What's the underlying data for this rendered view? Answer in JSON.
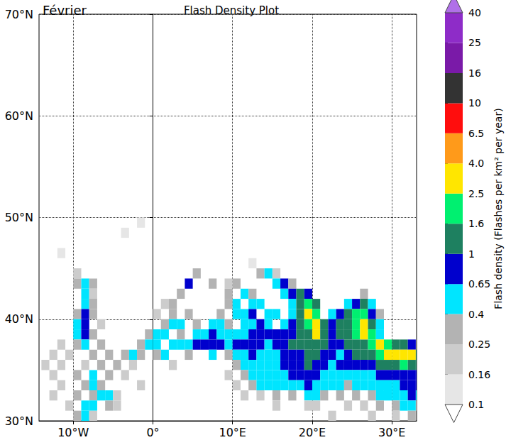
{
  "chart_data": {
    "type": "heatmap",
    "title": "Flash Density Plot",
    "annotation": "Février",
    "xlim": [
      -14.3,
      33.1
    ],
    "ylim": [
      30,
      70
    ],
    "xticks": [
      {
        "value": -10,
        "label": "10°W"
      },
      {
        "value": 0,
        "label": "0°"
      },
      {
        "value": 10,
        "label": "10°E"
      },
      {
        "value": 20,
        "label": "20°E"
      },
      {
        "value": 30,
        "label": "30°E"
      }
    ],
    "yticks": [
      {
        "value": 30,
        "label": "30°N"
      },
      {
        "value": 40,
        "label": "40°N"
      },
      {
        "value": 50,
        "label": "50°N"
      },
      {
        "value": 60,
        "label": "60°N"
      },
      {
        "value": 70,
        "label": "70°N"
      }
    ],
    "grid": true,
    "cell_size": 1,
    "cells": [
      [
        -10,
        44,
        0.2
      ],
      [
        13,
        44,
        0.3
      ],
      [
        14,
        44,
        0.5
      ],
      [
        15,
        44,
        0.2
      ],
      [
        -10,
        43,
        0.3
      ],
      [
        -9,
        43,
        0.6
      ],
      [
        -8,
        43,
        0.3
      ],
      [
        4,
        43,
        0.8
      ],
      [
        7,
        43,
        0.3
      ],
      [
        9,
        43,
        0.2
      ],
      [
        10,
        43,
        0.3
      ],
      [
        15,
        43,
        0.5
      ],
      [
        16,
        43,
        0.7
      ],
      [
        17,
        43,
        0.3
      ],
      [
        -9,
        42,
        0.5
      ],
      [
        -8,
        42,
        0.2
      ],
      [
        3,
        42,
        0.3
      ],
      [
        9,
        42,
        0.3
      ],
      [
        11,
        42,
        0.4
      ],
      [
        12,
        42,
        0.3
      ],
      [
        16,
        42,
        0.5
      ],
      [
        17,
        42,
        0.8
      ],
      [
        18,
        42,
        1.2
      ],
      [
        19,
        42,
        0.7
      ],
      [
        26,
        42,
        0.3
      ],
      [
        -9,
        41,
        0.5
      ],
      [
        -8,
        41,
        0.3
      ],
      [
        1,
        41,
        0.2
      ],
      [
        2,
        41,
        0.3
      ],
      [
        9,
        41,
        0.3
      ],
      [
        10,
        41,
        0.5
      ],
      [
        12,
        41,
        0.5
      ],
      [
        13,
        41,
        0.6
      ],
      [
        17,
        41,
        0.5
      ],
      [
        18,
        41,
        1.0
      ],
      [
        19,
        41,
        2.0
      ],
      [
        20,
        41,
        1.2
      ],
      [
        24,
        41,
        0.5
      ],
      [
        25,
        41,
        0.9
      ],
      [
        26,
        41,
        1.2
      ],
      [
        27,
        41,
        0.5
      ],
      [
        -10,
        40,
        0.3
      ],
      [
        -9,
        40,
        0.7
      ],
      [
        -8,
        40,
        0.3
      ],
      [
        0,
        40,
        0.2
      ],
      [
        2,
        40,
        0.3
      ],
      [
        4,
        40,
        0.3
      ],
      [
        8,
        40,
        0.3
      ],
      [
        10,
        40,
        0.4
      ],
      [
        11,
        40,
        0.5
      ],
      [
        12,
        40,
        0.7
      ],
      [
        14,
        40,
        0.5
      ],
      [
        15,
        40,
        0.4
      ],
      [
        17,
        40,
        0.6
      ],
      [
        18,
        40,
        1.2
      ],
      [
        19,
        40,
        2.8
      ],
      [
        20,
        40,
        1.8
      ],
      [
        22,
        40,
        0.5
      ],
      [
        23,
        40,
        0.8
      ],
      [
        24,
        40,
        1.0
      ],
      [
        25,
        40,
        1.8
      ],
      [
        26,
        40,
        2.2
      ],
      [
        27,
        40,
        0.7
      ],
      [
        28,
        40,
        0.3
      ],
      [
        -10,
        39,
        0.5
      ],
      [
        -9,
        39,
        0.9
      ],
      [
        -7,
        39,
        0.2
      ],
      [
        1,
        39,
        0.3
      ],
      [
        2,
        39,
        0.4
      ],
      [
        3,
        39,
        0.5
      ],
      [
        5,
        39,
        0.3
      ],
      [
        7,
        39,
        0.4
      ],
      [
        8,
        39,
        0.5
      ],
      [
        9,
        39,
        0.3
      ],
      [
        11,
        39,
        0.5
      ],
      [
        12,
        39,
        0.6
      ],
      [
        13,
        39,
        0.7
      ],
      [
        14,
        39,
        0.6
      ],
      [
        16,
        39,
        0.5
      ],
      [
        17,
        39,
        0.8
      ],
      [
        18,
        39,
        1.2
      ],
      [
        19,
        39,
        2.0
      ],
      [
        20,
        39,
        3.0
      ],
      [
        21,
        39,
        1.0
      ],
      [
        22,
        39,
        0.7
      ],
      [
        23,
        39,
        1.0
      ],
      [
        24,
        39,
        1.5
      ],
      [
        25,
        39,
        2.0
      ],
      [
        26,
        39,
        3.0
      ],
      [
        27,
        39,
        1.5
      ],
      [
        28,
        39,
        0.4
      ],
      [
        -10,
        38,
        0.4
      ],
      [
        -9,
        38,
        0.7
      ],
      [
        -8,
        38,
        0.3
      ],
      [
        -1,
        38,
        0.3
      ],
      [
        0,
        38,
        0.5
      ],
      [
        1,
        38,
        0.4
      ],
      [
        3,
        38,
        0.3
      ],
      [
        5,
        38,
        0.5
      ],
      [
        6,
        38,
        0.5
      ],
      [
        7,
        38,
        0.7
      ],
      [
        8,
        38,
        0.6
      ],
      [
        9,
        38,
        0.4
      ],
      [
        10,
        38,
        0.5
      ],
      [
        11,
        38,
        0.6
      ],
      [
        12,
        38,
        0.7
      ],
      [
        13,
        38,
        0.8
      ],
      [
        14,
        38,
        0.7
      ],
      [
        15,
        38,
        0.8
      ],
      [
        16,
        38,
        0.9
      ],
      [
        17,
        38,
        0.9
      ],
      [
        18,
        38,
        1.0
      ],
      [
        19,
        38,
        1.5
      ],
      [
        20,
        38,
        2.5
      ],
      [
        21,
        38,
        1.2
      ],
      [
        22,
        38,
        0.9
      ],
      [
        23,
        38,
        1.2
      ],
      [
        24,
        38,
        1.0
      ],
      [
        25,
        38,
        1.8
      ],
      [
        26,
        38,
        2.8
      ],
      [
        27,
        38,
        2.0
      ],
      [
        28,
        38,
        0.6
      ],
      [
        -12,
        37,
        0.2
      ],
      [
        -10,
        37,
        0.3
      ],
      [
        -9,
        37,
        0.5
      ],
      [
        -7,
        37,
        0.3
      ],
      [
        -2,
        37,
        0.3
      ],
      [
        -1,
        37,
        0.5
      ],
      [
        0,
        37,
        0.4
      ],
      [
        2,
        37,
        0.4
      ],
      [
        3,
        37,
        0.5
      ],
      [
        4,
        37,
        0.6
      ],
      [
        5,
        37,
        0.7
      ],
      [
        6,
        37,
        0.8
      ],
      [
        7,
        37,
        0.9
      ],
      [
        8,
        37,
        0.7
      ],
      [
        9,
        37,
        0.6
      ],
      [
        10,
        37,
        0.7
      ],
      [
        11,
        37,
        0.8
      ],
      [
        12,
        37,
        0.9
      ],
      [
        13,
        37,
        0.7
      ],
      [
        14,
        37,
        0.6
      ],
      [
        15,
        37,
        0.7
      ],
      [
        16,
        37,
        0.9
      ],
      [
        17,
        37,
        1.0
      ],
      [
        18,
        37,
        1.2
      ],
      [
        19,
        37,
        1.3
      ],
      [
        20,
        37,
        1.5
      ],
      [
        21,
        37,
        1.0
      ],
      [
        22,
        37,
        0.8
      ],
      [
        23,
        37,
        0.9
      ],
      [
        24,
        37,
        1.0
      ],
      [
        25,
        37,
        1.2
      ],
      [
        26,
        37,
        1.5
      ],
      [
        27,
        37,
        2.0
      ],
      [
        28,
        37,
        2.5
      ],
      [
        29,
        37,
        2.0
      ],
      [
        30,
        37,
        1.5
      ],
      [
        31,
        37,
        1.0
      ],
      [
        32,
        37,
        0.8
      ],
      [
        -13,
        36,
        0.2
      ],
      [
        -11,
        36,
        0.2
      ],
      [
        -8,
        36,
        0.3
      ],
      [
        -6,
        36,
        0.3
      ],
      [
        -4,
        36,
        0.3
      ],
      [
        -3,
        36,
        0.4
      ],
      [
        -2,
        36,
        0.3
      ],
      [
        0,
        36,
        0.3
      ],
      [
        1,
        36,
        0.4
      ],
      [
        4,
        36,
        0.3
      ],
      [
        7,
        36,
        0.4
      ],
      [
        9,
        36,
        0.3
      ],
      [
        10,
        36,
        0.5
      ],
      [
        11,
        36,
        0.6
      ],
      [
        12,
        36,
        0.7
      ],
      [
        13,
        36,
        0.6
      ],
      [
        14,
        36,
        0.5
      ],
      [
        15,
        36,
        0.6
      ],
      [
        16,
        36,
        0.7
      ],
      [
        17,
        36,
        0.8
      ],
      [
        18,
        36,
        0.9
      ],
      [
        19,
        36,
        1.0
      ],
      [
        20,
        36,
        1.1
      ],
      [
        21,
        36,
        0.9
      ],
      [
        22,
        36,
        0.7
      ],
      [
        23,
        36,
        0.6
      ],
      [
        24,
        36,
        0.8
      ],
      [
        25,
        36,
        1.0
      ],
      [
        26,
        36,
        1.2
      ],
      [
        27,
        36,
        1.4
      ],
      [
        28,
        36,
        2.0
      ],
      [
        29,
        36,
        2.8
      ],
      [
        30,
        36,
        3.5
      ],
      [
        31,
        36,
        3.0
      ],
      [
        32,
        36,
        2.5
      ],
      [
        33,
        36,
        1.5
      ],
      [
        -14,
        35,
        0.2
      ],
      [
        -12,
        35,
        0.2
      ],
      [
        -9,
        35,
        0.2
      ],
      [
        -7,
        35,
        0.3
      ],
      [
        -5,
        35,
        0.3
      ],
      [
        -3,
        35,
        0.2
      ],
      [
        2,
        35,
        0.2
      ],
      [
        10,
        35,
        0.3
      ],
      [
        11,
        35,
        0.5
      ],
      [
        12,
        35,
        0.6
      ],
      [
        13,
        35,
        0.6
      ],
      [
        14,
        35,
        0.5
      ],
      [
        15,
        35,
        0.6
      ],
      [
        16,
        35,
        0.7
      ],
      [
        17,
        35,
        0.8
      ],
      [
        18,
        35,
        0.9
      ],
      [
        19,
        35,
        1.0
      ],
      [
        20,
        35,
        0.9
      ],
      [
        21,
        35,
        0.7
      ],
      [
        22,
        35,
        0.6
      ],
      [
        23,
        35,
        0.7
      ],
      [
        24,
        35,
        0.9
      ],
      [
        25,
        35,
        0.8
      ],
      [
        26,
        35,
        0.7
      ],
      [
        27,
        35,
        0.8
      ],
      [
        28,
        35,
        1.0
      ],
      [
        29,
        35,
        1.2
      ],
      [
        30,
        35,
        1.5
      ],
      [
        31,
        35,
        1.8
      ],
      [
        32,
        35,
        1.5
      ],
      [
        33,
        35,
        1.2
      ],
      [
        -13,
        34,
        0.2
      ],
      [
        -10,
        34,
        0.3
      ],
      [
        -8,
        34,
        0.4
      ],
      [
        -6,
        34,
        0.3
      ],
      [
        -4,
        34,
        0.2
      ],
      [
        9,
        34,
        0.2
      ],
      [
        11,
        34,
        0.3
      ],
      [
        12,
        34,
        0.4
      ],
      [
        13,
        34,
        0.5
      ],
      [
        14,
        34,
        0.5
      ],
      [
        15,
        34,
        0.6
      ],
      [
        16,
        34,
        0.6
      ],
      [
        17,
        34,
        0.7
      ],
      [
        18,
        34,
        0.8
      ],
      [
        19,
        34,
        0.9
      ],
      [
        20,
        34,
        0.8
      ],
      [
        21,
        34,
        0.6
      ],
      [
        22,
        34,
        0.5
      ],
      [
        23,
        34,
        0.5
      ],
      [
        24,
        34,
        0.6
      ],
      [
        25,
        34,
        0.6
      ],
      [
        26,
        34,
        0.5
      ],
      [
        27,
        34,
        0.6
      ],
      [
        28,
        34,
        0.7
      ],
      [
        29,
        34,
        0.8
      ],
      [
        30,
        34,
        0.9
      ],
      [
        31,
        34,
        0.9
      ],
      [
        32,
        34,
        0.8
      ],
      [
        33,
        34,
        0.7
      ],
      [
        -12,
        33,
        0.2
      ],
      [
        -9,
        33,
        0.3
      ],
      [
        -8,
        33,
        0.5
      ],
      [
        -7,
        33,
        0.3
      ],
      [
        -2,
        33,
        0.2
      ],
      [
        10,
        33,
        0.2
      ],
      [
        12,
        33,
        0.3
      ],
      [
        13,
        33,
        0.4
      ],
      [
        14,
        33,
        0.4
      ],
      [
        15,
        33,
        0.5
      ],
      [
        16,
        33,
        0.5
      ],
      [
        17,
        33,
        0.5
      ],
      [
        18,
        33,
        0.6
      ],
      [
        19,
        33,
        0.7
      ],
      [
        20,
        33,
        0.6
      ],
      [
        21,
        33,
        0.5
      ],
      [
        22,
        33,
        0.4
      ],
      [
        23,
        33,
        0.4
      ],
      [
        24,
        33,
        0.3
      ],
      [
        25,
        33,
        0.4
      ],
      [
        26,
        33,
        0.4
      ],
      [
        27,
        33,
        0.5
      ],
      [
        28,
        33,
        0.5
      ],
      [
        29,
        33,
        0.6
      ],
      [
        30,
        33,
        0.6
      ],
      [
        31,
        33,
        0.7
      ],
      [
        32,
        33,
        0.7
      ],
      [
        33,
        33,
        0.8
      ],
      [
        -13,
        32,
        0.2
      ],
      [
        -10,
        32,
        0.3
      ],
      [
        -8,
        32,
        0.3
      ],
      [
        -7,
        32,
        0.5
      ],
      [
        -6,
        32,
        0.4
      ],
      [
        -5,
        32,
        0.2
      ],
      [
        11,
        32,
        0.2
      ],
      [
        13,
        32,
        0.2
      ],
      [
        15,
        32,
        0.3
      ],
      [
        17,
        32,
        0.3
      ],
      [
        19,
        32,
        0.4
      ],
      [
        20,
        32,
        0.4
      ],
      [
        21,
        32,
        0.3
      ],
      [
        23,
        32,
        0.3
      ],
      [
        25,
        32,
        0.3
      ],
      [
        27,
        32,
        0.3
      ],
      [
        28,
        32,
        0.4
      ],
      [
        29,
        32,
        0.5
      ],
      [
        30,
        32,
        0.5
      ],
      [
        31,
        32,
        0.6
      ],
      [
        32,
        32,
        0.7
      ],
      [
        33,
        32,
        0.6
      ],
      [
        -11,
        31,
        0.2
      ],
      [
        -9,
        31,
        0.4
      ],
      [
        -8,
        31,
        0.6
      ],
      [
        -6,
        31,
        0.3
      ],
      [
        -5,
        31,
        0.2
      ],
      [
        15,
        31,
        0.2
      ],
      [
        19,
        31,
        0.2
      ],
      [
        20,
        31,
        0.2
      ],
      [
        24,
        31,
        0.2
      ],
      [
        26,
        31,
        0.2
      ],
      [
        28,
        31,
        0.3
      ],
      [
        30,
        31,
        0.3
      ],
      [
        31,
        31,
        0.4
      ],
      [
        32,
        31,
        0.4
      ],
      [
        33,
        31,
        0.3
      ],
      [
        -10,
        30,
        0.3
      ],
      [
        -9,
        30,
        0.4
      ],
      [
        -8,
        30,
        0.2
      ],
      [
        22,
        30,
        0.2
      ],
      [
        27,
        30,
        0.2
      ],
      [
        30,
        30,
        0.2
      ],
      [
        32,
        30,
        0.3
      ],
      [
        -4,
        48,
        0.15
      ],
      [
        -2,
        49,
        0.12
      ],
      [
        -12,
        46,
        0.12
      ],
      [
        5,
        44,
        0.3
      ],
      [
        12,
        45,
        0.15
      ]
    ],
    "colorbar": {
      "label": "Flash density (Flashes per km² per year)",
      "bounds": [
        0.1,
        0.16,
        0.25,
        0.4,
        0.65,
        1,
        1.6,
        2.5,
        {
          "value": 4,
          "label": "4.0"
        },
        6.5,
        10,
        16,
        25,
        40
      ],
      "colors": [
        "#e6e6e6",
        "#cccccc",
        "#b3b3b3",
        "#00e5ff",
        "#0000cd",
        "#1e8060",
        "#00f070",
        "#ffe600",
        "#ff9a1a",
        "#ff0d0d",
        "#333333",
        "#7a1aa8",
        "#8e2cc8"
      ],
      "under_color": "#ffffff",
      "over_color": "#b070e8"
    }
  }
}
